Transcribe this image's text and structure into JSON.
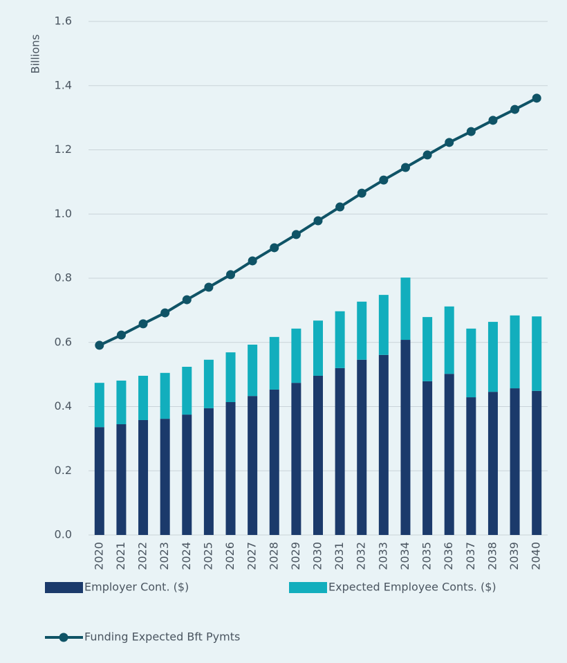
{
  "chart_data": {
    "type": "bar",
    "stacked": true,
    "y_label": "Billions",
    "categories": [
      "2020",
      "2021",
      "2022",
      "2023",
      "2024",
      "2025",
      "2026",
      "2027",
      "2028",
      "2029",
      "2030",
      "2031",
      "2032",
      "2033",
      "2034",
      "2035",
      "2036",
      "2037",
      "2038",
      "2039",
      "2040"
    ],
    "series": [
      {
        "name": "Employer Cont. ($)",
        "color": "#1b3a6b",
        "type": "bar",
        "values": [
          0.336,
          0.345,
          0.358,
          0.362,
          0.375,
          0.395,
          0.414,
          0.433,
          0.453,
          0.474,
          0.496,
          0.52,
          0.546,
          0.561,
          0.608,
          0.479,
          0.502,
          0.429,
          0.446,
          0.457,
          0.449
        ]
      },
      {
        "name": "Expected Employee Conts. ($)",
        "color": "#12aebd",
        "type": "bar",
        "values": [
          0.138,
          0.136,
          0.138,
          0.143,
          0.149,
          0.151,
          0.155,
          0.16,
          0.164,
          0.169,
          0.172,
          0.177,
          0.181,
          0.187,
          0.194,
          0.2,
          0.21,
          0.214,
          0.218,
          0.227,
          0.232
        ]
      },
      {
        "name": "Funding Expected Bft Pymts",
        "color": "#0f5366",
        "type": "line",
        "values": [
          0.591,
          0.623,
          0.658,
          0.692,
          0.733,
          0.772,
          0.811,
          0.854,
          0.895,
          0.936,
          0.979,
          1.022,
          1.065,
          1.106,
          1.145,
          1.184,
          1.223,
          1.257,
          1.292,
          1.326,
          1.361
        ]
      }
    ],
    "ylim": [
      0,
      1.6
    ],
    "yticks": [
      {
        "value": 0,
        "label": "0.0"
      },
      {
        "value": 0.2,
        "label": "0.2"
      },
      {
        "value": 0.4,
        "label": "0.4"
      },
      {
        "value": 0.6,
        "label": "0.6"
      },
      {
        "value": 0.8,
        "label": "0.8"
      },
      {
        "value": 1,
        "label": "1.0"
      },
      {
        "value": 1.2,
        "label": "1.2"
      },
      {
        "value": 1.4,
        "label": "1.4"
      },
      {
        "value": 1.6,
        "label": "1.6"
      }
    ],
    "grid": true,
    "legend": "bottom"
  }
}
